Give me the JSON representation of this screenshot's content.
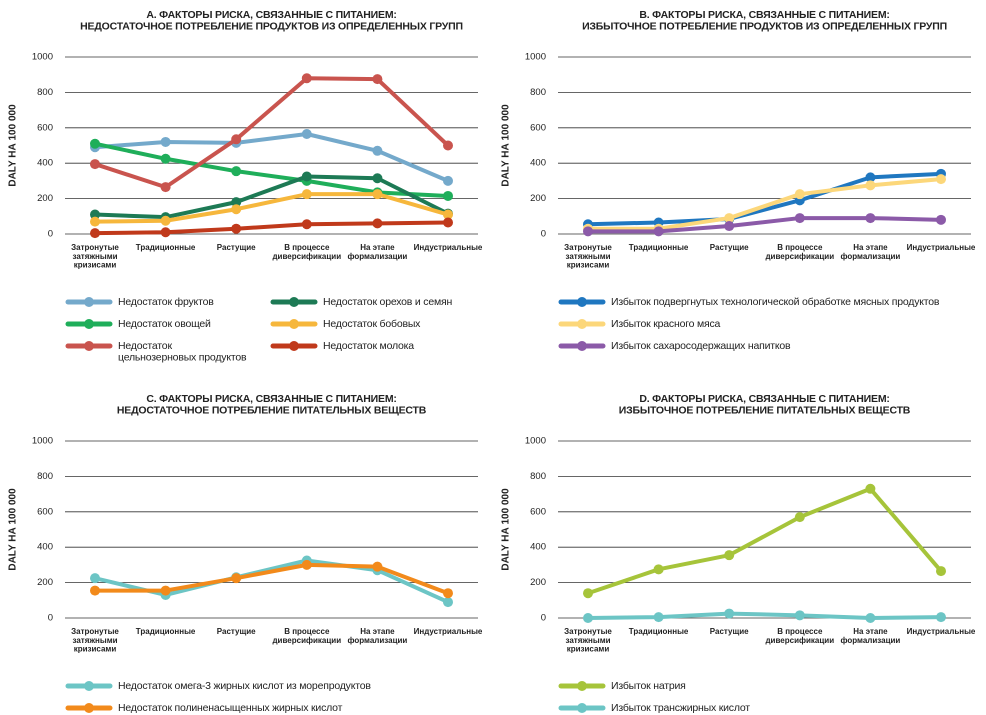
{
  "chart_data": [
    {
      "type": "line",
      "title": "A.  ФАКТОРЫ РИСКА, СВЯЗАННЫЕ С ПИТАНИЕМ:\nНЕДОСТАТОЧНОЕ ПОТРЕБЛЕНИЕ ПРОДУКТОВ ИЗ ОПРЕДЕЛЕННЫХ ГРУПП",
      "y_label": "DALY НА 100 000",
      "categories": [
        "Затронутые\nзатяжными\nкризисами",
        "Традиционные",
        "Растущие",
        "В процессе\nдиверсификации",
        "На этапе\nформализации",
        "Индустриальные"
      ],
      "ylim": [
        0,
        1000
      ],
      "yticks": [
        0,
        200,
        400,
        600,
        800,
        1000
      ],
      "grid": true,
      "series": [
        {
          "name": "Недостаток фруктов",
          "color": "#74a9cb",
          "values": [
            490,
            520,
            515,
            565,
            470,
            300
          ]
        },
        {
          "name": "Недостаток овощей",
          "color": "#1fae5a",
          "values": [
            510,
            425,
            355,
            300,
            235,
            215
          ]
        },
        {
          "name": "Недостаток\nцельнозерновых продуктов",
          "color": "#c9544e",
          "values": [
            395,
            265,
            535,
            880,
            875,
            500
          ]
        },
        {
          "name": "Недостаток орехов и семян",
          "color": "#1d7a55",
          "values": [
            110,
            95,
            180,
            325,
            315,
            115
          ]
        },
        {
          "name": "Недостаток бобовых",
          "color": "#f6b73c",
          "values": [
            70,
            75,
            140,
            225,
            225,
            110
          ]
        },
        {
          "name": "Недостаток молока",
          "color": "#c0391b",
          "values": [
            5,
            10,
            30,
            55,
            60,
            65
          ]
        }
      ]
    },
    {
      "type": "line",
      "title": "B. ФАКТОРЫ РИСКА, СВЯЗАННЫЕ С ПИТАНИЕМ:\nИЗБЫТОЧНОЕ ПОТРЕБЛЕНИЕ ПРОДУКТОВ ИЗ ОПРЕДЕЛЕННЫХ ГРУПП",
      "y_label": "DALY НА 100 000",
      "categories": [
        "Затронутые\nзатяжными\nкризисами",
        "Традиционные",
        "Растущие",
        "В процессе\nдиверсификации",
        "На этапе\nформализации",
        "Индустриальные"
      ],
      "ylim": [
        0,
        1000
      ],
      "yticks": [
        0,
        200,
        400,
        600,
        800,
        1000
      ],
      "grid": true,
      "series": [
        {
          "name": "Избыток подвергнутых технологической обработке мясных продуктов",
          "color": "#1f77c0",
          "values": [
            55,
            65,
            85,
            190,
            320,
            340
          ]
        },
        {
          "name": "Избыток красного мяса",
          "color": "#fcd77a",
          "values": [
            30,
            30,
            90,
            225,
            275,
            310
          ]
        },
        {
          "name": "Избыток сахаросодержащих напитков",
          "color": "#8b5aa8",
          "values": [
            15,
            15,
            45,
            90,
            90,
            80
          ]
        }
      ]
    },
    {
      "type": "line",
      "title": "C. ФАКТОРЫ РИСКА, СВЯЗАННЫЕ С ПИТАНИЕМ:\nНЕДОСТАТОЧНОЕ ПОТРЕБЛЕНИЕ ПИТАТЕЛЬНЫХ ВЕЩЕСТВ",
      "y_label": "DALY НА 100 000",
      "categories": [
        "Затронутые\nзатяжными\nкризисами",
        "Традиционные",
        "Растущие",
        "В процессе\nдиверсификации",
        "На этапе\nформализации",
        "Индустриальные"
      ],
      "ylim": [
        0,
        1000
      ],
      "yticks": [
        0,
        200,
        400,
        600,
        800,
        1000
      ],
      "grid": true,
      "series": [
        {
          "name": "Недостаток омега-3 жирных кислот из морепродуктов",
          "color": "#6cc5c5",
          "values": [
            225,
            130,
            230,
            325,
            270,
            90
          ]
        },
        {
          "name": "Недостаток полиненасыщенных жирных кислот",
          "color": "#f28a1b",
          "values": [
            155,
            155,
            225,
            300,
            290,
            140
          ]
        }
      ]
    },
    {
      "type": "line",
      "title": "D. ФАКТОРЫ РИСКА, СВЯЗАННЫЕ С ПИТАНИЕМ:\nИЗБЫТОЧНОЕ ПОТРЕБЛЕНИЕ ПИТАТЕЛЬНЫХ ВЕЩЕСТВ",
      "y_label": "DALY НА 100 000",
      "categories": [
        "Затронутые\nзатяжными\nкризисами",
        "Традиционные",
        "Растущие",
        "В процессе\nдиверсификации",
        "На этапе\nформализации",
        "Индустриальные"
      ],
      "ylim": [
        0,
        1000
      ],
      "yticks": [
        0,
        200,
        400,
        600,
        800,
        1000
      ],
      "grid": true,
      "series": [
        {
          "name": "Избыток натрия",
          "color": "#a6c43a",
          "values": [
            140,
            275,
            355,
            570,
            730,
            265
          ]
        },
        {
          "name": "Избыток трансжирных кислот",
          "color": "#6cc5c5",
          "values": [
            0,
            5,
            25,
            15,
            0,
            5
          ]
        }
      ]
    }
  ]
}
